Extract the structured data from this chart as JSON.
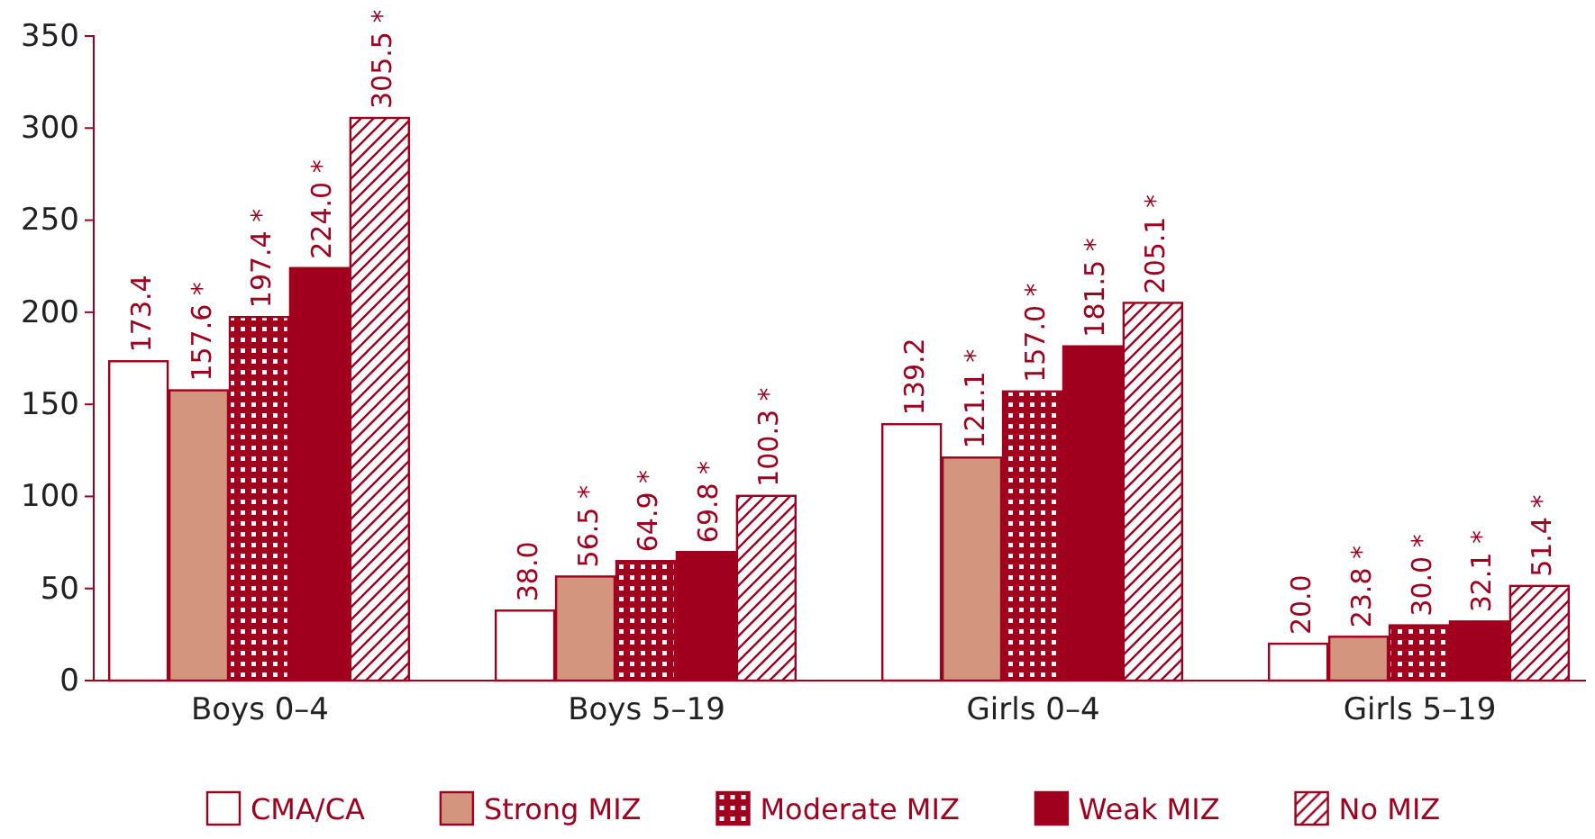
{
  "chart_data": {
    "type": "bar",
    "categories": [
      "Boys 0–4",
      "Boys 5–19",
      "Girls 0–4",
      "Girls 5–19"
    ],
    "series": [
      {
        "name": "CMA/CA",
        "color": "#ffffff",
        "values": [
          173.4,
          38.0,
          139.2,
          20.0
        ],
        "value_labels": [
          "173.4",
          "38.0",
          "139.2",
          "20.0"
        ]
      },
      {
        "name": "Strong MIZ",
        "color": "#d4957e",
        "values": [
          157.6,
          56.5,
          121.1,
          23.8
        ],
        "value_labels": [
          "157.6 *",
          "56.5 *",
          "121.1 *",
          "23.8 *"
        ]
      },
      {
        "name": "Moderate MIZ",
        "color": "#a0001e",
        "values": [
          197.4,
          64.9,
          157.0,
          30.0
        ],
        "value_labels": [
          "197.4 *",
          "64.9 *",
          "157.0 *",
          "30.0 *"
        ]
      },
      {
        "name": "Weak MIZ",
        "color": "#a0001e",
        "values": [
          224.0,
          69.8,
          181.5,
          32.1
        ],
        "value_labels": [
          "224.0 *",
          "69.8 *",
          "181.5 *",
          "32.1 *"
        ]
      },
      {
        "name": "No MIZ",
        "color": "#a0001e",
        "values": [
          305.5,
          100.3,
          205.1,
          51.4
        ],
        "value_labels": [
          "305.5 *",
          "100.3 *",
          "205.1 *",
          "51.4 *"
        ]
      }
    ],
    "ylim": [
      0,
      350
    ],
    "yticks": [
      0,
      50,
      100,
      150,
      200,
      250,
      300,
      350
    ],
    "grid": false,
    "legend": "bottom"
  }
}
